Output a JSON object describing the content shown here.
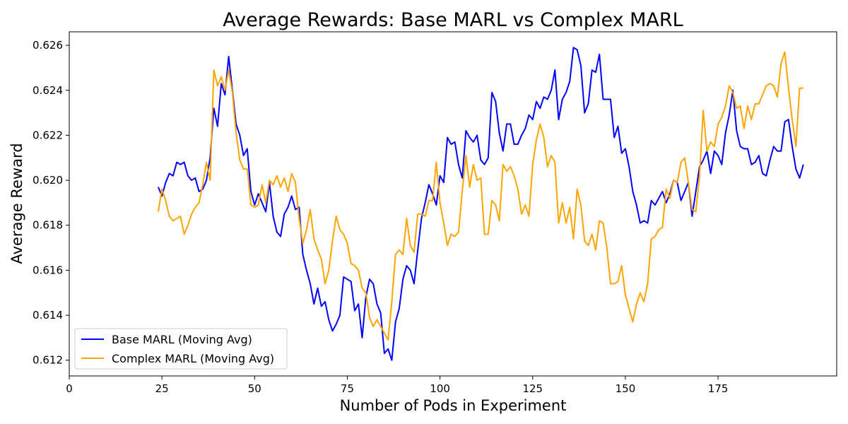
{
  "chart_data": {
    "type": "line",
    "title": "Average Rewards: Base MARL vs Complex MARL",
    "xlabel": "Number of Pods in Experiment",
    "ylabel": "Average Reward",
    "xlim": [
      0,
      207
    ],
    "ylim": [
      0.6113,
      0.6266
    ],
    "xticks": [
      0,
      25,
      50,
      75,
      100,
      125,
      150,
      175
    ],
    "yticks": [
      0.612,
      0.614,
      0.616,
      0.618,
      0.62,
      0.622,
      0.624,
      0.626
    ],
    "ytick_labels": [
      "0.612",
      "0.614",
      "0.616",
      "0.618",
      "0.620",
      "0.622",
      "0.624",
      "0.626"
    ],
    "grid": false,
    "legend_position": "lower-left",
    "x_start": 24,
    "series": [
      {
        "name": "Base MARL (Moving Avg)",
        "color": "#0000ff",
        "values": [
          0.6197,
          0.6193,
          0.6199,
          0.6203,
          0.6202,
          0.6208,
          0.6207,
          0.6208,
          0.6202,
          0.62,
          0.6201,
          0.6195,
          0.6196,
          0.62,
          0.621,
          0.6232,
          0.6224,
          0.6243,
          0.6238,
          0.6255,
          0.624,
          0.6225,
          0.622,
          0.6211,
          0.6214,
          0.6195,
          0.6189,
          0.6194,
          0.619,
          0.6186,
          0.6199,
          0.6184,
          0.6177,
          0.6175,
          0.6185,
          0.6188,
          0.6193,
          0.6187,
          0.6188,
          0.6167,
          0.616,
          0.6154,
          0.6145,
          0.6152,
          0.6144,
          0.6146,
          0.6138,
          0.6133,
          0.6136,
          0.614,
          0.6157,
          0.6156,
          0.6155,
          0.6142,
          0.6145,
          0.613,
          0.6148,
          0.6156,
          0.6154,
          0.6145,
          0.6141,
          0.6123,
          0.6125,
          0.612,
          0.6137,
          0.6143,
          0.6156,
          0.6162,
          0.616,
          0.6154,
          0.6169,
          0.6183,
          0.619,
          0.6198,
          0.6194,
          0.6189,
          0.6202,
          0.6199,
          0.6219,
          0.6216,
          0.6217,
          0.6207,
          0.6201,
          0.6222,
          0.6219,
          0.6217,
          0.622,
          0.6209,
          0.6207,
          0.621,
          0.6239,
          0.6235,
          0.6221,
          0.6213,
          0.6225,
          0.6225,
          0.6216,
          0.6216,
          0.622,
          0.6223,
          0.6229,
          0.6227,
          0.6235,
          0.6232,
          0.6237,
          0.6236,
          0.624,
          0.6249,
          0.6227,
          0.6236,
          0.6239,
          0.6244,
          0.6259,
          0.6258,
          0.6251,
          0.623,
          0.6234,
          0.6249,
          0.6248,
          0.6256,
          0.6236,
          0.6236,
          0.6236,
          0.6219,
          0.6224,
          0.6212,
          0.6214,
          0.6206,
          0.6195,
          0.6189,
          0.6181,
          0.6182,
          0.6181,
          0.6191,
          0.6189,
          0.6192,
          0.6195,
          0.619,
          0.6194,
          0.62,
          0.6199,
          0.6191,
          0.6195,
          0.6199,
          0.6184,
          0.6195,
          0.6206,
          0.6209,
          0.6213,
          0.6203,
          0.6213,
          0.6211,
          0.6207,
          0.6221,
          0.6229,
          0.624,
          0.6222,
          0.6215,
          0.6214,
          0.6214,
          0.6207,
          0.6208,
          0.6211,
          0.6203,
          0.6202,
          0.6209,
          0.6215,
          0.6213,
          0.6213,
          0.6226,
          0.6227,
          0.6215,
          0.6205,
          0.6201,
          0.6207
        ]
      },
      {
        "name": "Complex MARL (Moving Avg)",
        "color": "#ffa500",
        "values": [
          0.6186,
          0.6196,
          0.6191,
          0.6184,
          0.6182,
          0.6183,
          0.6184,
          0.6176,
          0.618,
          0.6185,
          0.6188,
          0.619,
          0.6198,
          0.6208,
          0.62,
          0.6249,
          0.6242,
          0.6246,
          0.624,
          0.6249,
          0.6239,
          0.6221,
          0.6209,
          0.6205,
          0.6205,
          0.6189,
          0.6188,
          0.6189,
          0.6198,
          0.619,
          0.62,
          0.6198,
          0.6202,
          0.6197,
          0.6201,
          0.6195,
          0.6203,
          0.6199,
          0.6183,
          0.6172,
          0.6178,
          0.6187,
          0.6174,
          0.6169,
          0.6165,
          0.6154,
          0.616,
          0.6173,
          0.6184,
          0.6178,
          0.6176,
          0.6172,
          0.6163,
          0.6162,
          0.616,
          0.6152,
          0.615,
          0.6139,
          0.6135,
          0.6138,
          0.6135,
          0.6132,
          0.6129,
          0.6146,
          0.6167,
          0.6169,
          0.6167,
          0.6183,
          0.6171,
          0.6168,
          0.6185,
          0.6185,
          0.6184,
          0.6191,
          0.6191,
          0.6208,
          0.619,
          0.6181,
          0.6171,
          0.6176,
          0.6175,
          0.6177,
          0.6195,
          0.6211,
          0.6197,
          0.6207,
          0.62,
          0.6201,
          0.6176,
          0.6176,
          0.6191,
          0.6189,
          0.6182,
          0.6207,
          0.6204,
          0.6206,
          0.6202,
          0.6196,
          0.6185,
          0.6189,
          0.6184,
          0.6207,
          0.6218,
          0.6225,
          0.6219,
          0.6206,
          0.6211,
          0.6208,
          0.6181,
          0.619,
          0.6181,
          0.6188,
          0.6174,
          0.6196,
          0.6189,
          0.6173,
          0.6171,
          0.6176,
          0.6169,
          0.6182,
          0.6181,
          0.617,
          0.6154,
          0.6154,
          0.6155,
          0.6162,
          0.6149,
          0.6143,
          0.6137,
          0.6145,
          0.615,
          0.6146,
          0.6154,
          0.6174,
          0.6175,
          0.6178,
          0.6179,
          0.6196,
          0.6192,
          0.62,
          0.6199,
          0.6208,
          0.621,
          0.6199,
          0.6187,
          0.6186,
          0.6202,
          0.6231,
          0.6213,
          0.6217,
          0.6215,
          0.6225,
          0.6228,
          0.6233,
          0.6242,
          0.6239,
          0.6232,
          0.6233,
          0.6223,
          0.6233,
          0.6227,
          0.6234,
          0.6234,
          0.6238,
          0.6242,
          0.6243,
          0.6242,
          0.6237,
          0.6252,
          0.6257,
          0.6241,
          0.6227,
          0.6215,
          0.6241,
          0.6241
        ]
      }
    ]
  }
}
